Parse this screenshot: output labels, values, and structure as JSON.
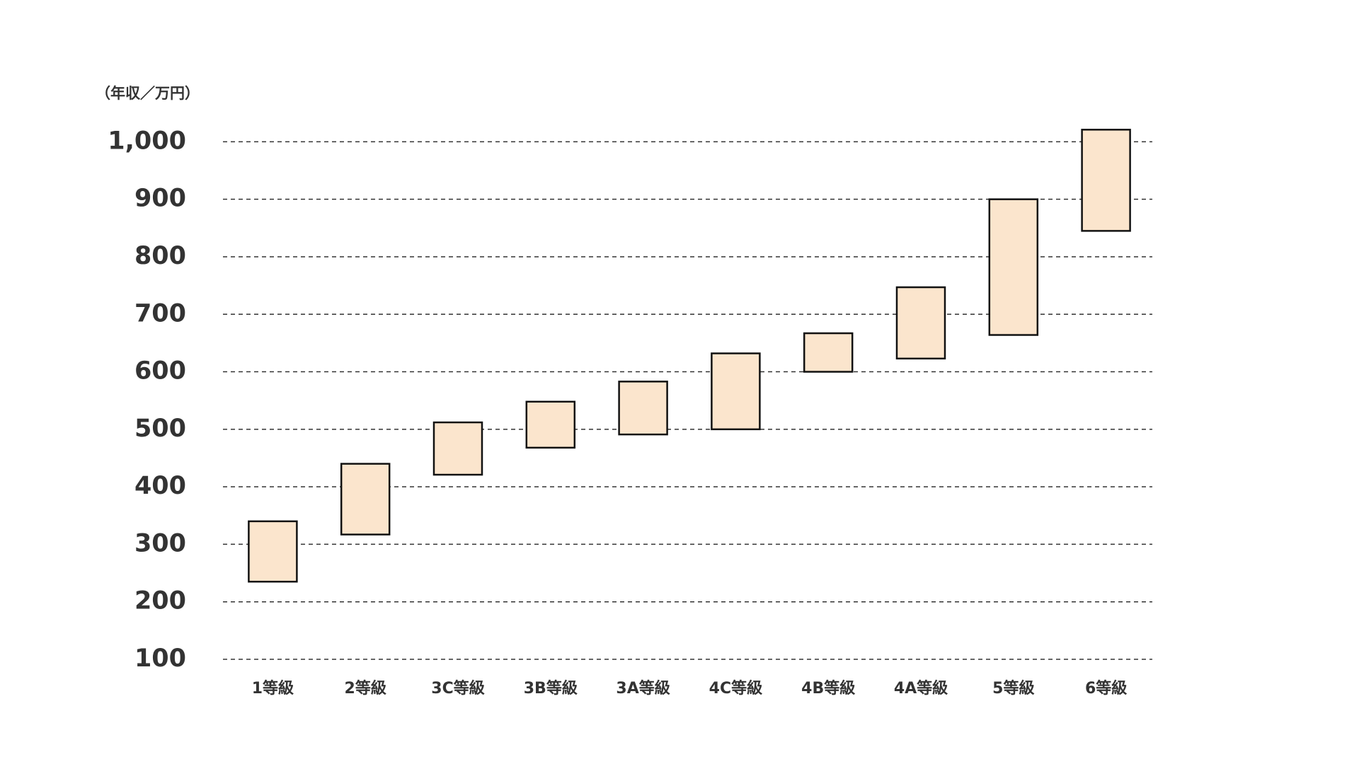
{
  "chart_data": {
    "type": "range_bar",
    "y_label": "（年収／万円）",
    "categories": [
      "1等級",
      "2等級",
      "3C等級",
      "3B等級",
      "3A等級",
      "4C等級",
      "4B等級",
      "4A等級",
      "5等級",
      "6等級"
    ],
    "low": [
      235,
      317,
      421,
      468,
      491,
      500,
      600,
      623,
      664,
      845
    ],
    "high": [
      340,
      440,
      512,
      548,
      583,
      632,
      667,
      747,
      900,
      1021
    ],
    "color": "#fbe5cd",
    "ylim": [
      100,
      1030
    ],
    "yticks": [
      100,
      200,
      300,
      400,
      500,
      600,
      700,
      800,
      900,
      {
        "value": 1000,
        "label": "1,000"
      }
    ],
    "grid": true
  }
}
